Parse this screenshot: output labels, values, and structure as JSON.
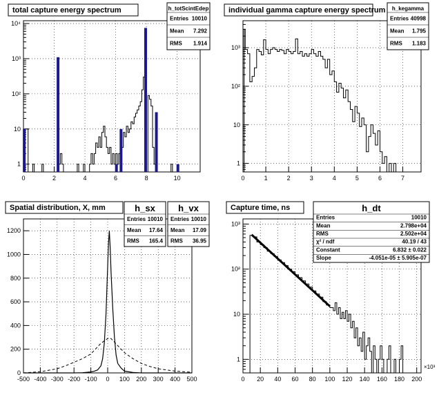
{
  "chart_data": [
    {
      "type": "bar",
      "title": "total capture energy spectrum",
      "stats": {
        "name": "h_totScintEdep",
        "rows": [
          [
            "Entries",
            "10010"
          ],
          [
            "Mean",
            "7.292"
          ],
          [
            "RMS",
            "1.914"
          ]
        ]
      },
      "xlim": [
        0,
        11.5
      ],
      "ylog": true,
      "ylim": [
        0.6,
        12000
      ],
      "x_ticks": [
        "0",
        "2",
        "4",
        "6",
        "8",
        "10"
      ],
      "y_ticks": [
        "1",
        "10",
        "10²",
        "10³",
        "10⁴"
      ],
      "outline": [
        [
          0,
          0.6
        ],
        [
          0.1,
          10
        ],
        [
          0.3,
          0.6
        ],
        [
          0.5,
          0.6
        ],
        [
          0.6,
          1
        ],
        [
          0.7,
          0.6
        ],
        [
          1.1,
          0.6
        ],
        [
          1.2,
          1
        ],
        [
          1.3,
          0.6
        ],
        [
          2.1,
          0.6
        ],
        [
          2.2,
          2
        ],
        [
          2.3,
          1
        ],
        [
          2.4,
          2
        ],
        [
          2.5,
          1
        ],
        [
          2.6,
          0.6
        ],
        [
          3.4,
          0.6
        ],
        [
          3.5,
          1
        ],
        [
          3.6,
          0.6
        ],
        [
          3.8,
          0.6
        ],
        [
          3.9,
          1
        ],
        [
          4.0,
          0.6
        ],
        [
          4.2,
          0.6
        ],
        [
          4.3,
          1
        ],
        [
          4.4,
          2
        ],
        [
          4.5,
          1
        ],
        [
          4.6,
          2
        ],
        [
          4.7,
          4
        ],
        [
          4.8,
          3
        ],
        [
          4.9,
          6
        ],
        [
          5.0,
          3
        ],
        [
          5.1,
          8
        ],
        [
          5.2,
          12
        ],
        [
          5.3,
          6
        ],
        [
          5.4,
          3
        ],
        [
          5.5,
          2
        ],
        [
          5.6,
          3
        ],
        [
          5.7,
          1
        ],
        [
          5.8,
          2
        ],
        [
          5.9,
          1
        ],
        [
          6.0,
          2
        ],
        [
          6.1,
          1
        ],
        [
          6.2,
          2
        ],
        [
          6.3,
          4
        ],
        [
          6.4,
          3
        ],
        [
          6.5,
          8
        ],
        [
          6.6,
          6
        ],
        [
          6.7,
          12
        ],
        [
          6.8,
          8
        ],
        [
          6.9,
          10
        ],
        [
          7.0,
          16
        ],
        [
          7.1,
          14
        ],
        [
          7.2,
          22
        ],
        [
          7.3,
          28
        ],
        [
          7.4,
          35
        ],
        [
          7.5,
          45
        ],
        [
          7.6,
          60
        ],
        [
          7.7,
          130
        ],
        [
          7.8,
          300
        ],
        [
          7.9,
          600
        ],
        [
          8.0,
          0.6
        ],
        [
          8.1,
          90
        ],
        [
          8.2,
          70
        ],
        [
          8.3,
          45
        ],
        [
          8.4,
          3
        ],
        [
          8.5,
          1
        ],
        [
          8.6,
          0.6
        ],
        [
          9.5,
          0.6
        ],
        [
          9.6,
          1
        ],
        [
          9.7,
          0.6
        ],
        [
          11.5,
          0.6
        ]
      ],
      "peaks": [
        {
          "x": 0.05,
          "y": 10
        },
        {
          "x": 2.25,
          "y": 1100
        },
        {
          "x": 6.05,
          "y": 1
        },
        {
          "x": 6.35,
          "y": 10
        },
        {
          "x": 7.95,
          "y": 7500
        },
        {
          "x": 8.65,
          "y": 30
        },
        {
          "x": 10.05,
          "y": 1
        }
      ]
    },
    {
      "type": "bar",
      "title": "individual gamma capture energy spectrum",
      "stats": {
        "name": "h_kegamma",
        "rows": [
          [
            "Entries",
            "40998"
          ],
          [
            "Mean",
            "1.795"
          ],
          [
            "RMS",
            "1.183"
          ]
        ]
      },
      "xlim": [
        0,
        7.8
      ],
      "ylog": true,
      "ylim": [
        0.6,
        5000
      ],
      "x_ticks": [
        "0",
        "1",
        "2",
        "3",
        "4",
        "5",
        "6",
        "7"
      ],
      "y_ticks": [
        "1",
        "10",
        "10²",
        "10³"
      ],
      "outline": [
        [
          0,
          0.6
        ],
        [
          0.05,
          3000
        ],
        [
          0.1,
          900
        ],
        [
          0.2,
          700
        ],
        [
          0.3,
          130
        ],
        [
          0.4,
          180
        ],
        [
          0.5,
          300
        ],
        [
          0.6,
          900
        ],
        [
          0.7,
          800
        ],
        [
          0.8,
          650
        ],
        [
          0.9,
          1600
        ],
        [
          1.0,
          900
        ],
        [
          1.1,
          700
        ],
        [
          1.2,
          900
        ],
        [
          1.3,
          1000
        ],
        [
          1.4,
          900
        ],
        [
          1.5,
          800
        ],
        [
          1.6,
          900
        ],
        [
          1.7,
          850
        ],
        [
          1.8,
          700
        ],
        [
          1.9,
          900
        ],
        [
          2.0,
          800
        ],
        [
          2.1,
          700
        ],
        [
          2.2,
          800
        ],
        [
          2.3,
          1700
        ],
        [
          2.4,
          700
        ],
        [
          2.5,
          800
        ],
        [
          2.6,
          600
        ],
        [
          2.7,
          700
        ],
        [
          2.8,
          600
        ],
        [
          2.9,
          700
        ],
        [
          3.0,
          900
        ],
        [
          3.1,
          700
        ],
        [
          3.2,
          600
        ],
        [
          3.3,
          800
        ],
        [
          3.4,
          600
        ],
        [
          3.5,
          500
        ],
        [
          3.6,
          300
        ],
        [
          3.7,
          500
        ],
        [
          3.8,
          200
        ],
        [
          3.9,
          250
        ],
        [
          4.0,
          130
        ],
        [
          4.1,
          70
        ],
        [
          4.2,
          120
        ],
        [
          4.3,
          90
        ],
        [
          4.4,
          50
        ],
        [
          4.5,
          80
        ],
        [
          4.6,
          40
        ],
        [
          4.7,
          25
        ],
        [
          4.8,
          12
        ],
        [
          4.9,
          30
        ],
        [
          5.0,
          20
        ],
        [
          5.1,
          9
        ],
        [
          5.2,
          15
        ],
        [
          5.3,
          10
        ],
        [
          5.4,
          2
        ],
        [
          5.5,
          5
        ],
        [
          5.6,
          10
        ],
        [
          5.7,
          6
        ],
        [
          5.8,
          3
        ],
        [
          5.9,
          7
        ],
        [
          6.0,
          2
        ],
        [
          6.1,
          1
        ],
        [
          6.2,
          1.5
        ],
        [
          6.3,
          0.6
        ],
        [
          6.4,
          1
        ],
        [
          6.5,
          0.6
        ],
        [
          6.6,
          1
        ],
        [
          6.7,
          0.6
        ],
        [
          7.8,
          0.6
        ]
      ]
    },
    {
      "type": "line",
      "title": "Spatial distribution, X, mm",
      "stats": [
        {
          "name": "h_sx",
          "rows": [
            [
              "Entries",
              "10010"
            ],
            [
              "Mean",
              "17.64"
            ],
            [
              "RMS",
              "165.4"
            ]
          ]
        },
        {
          "name": "h_vx",
          "rows": [
            [
              "Entries",
              "10010"
            ],
            [
              "Mean",
              "17.09"
            ],
            [
              "RMS",
              "36.95"
            ]
          ]
        }
      ],
      "xlim": [
        -500,
        500
      ],
      "ylim": [
        0,
        1300
      ],
      "x_ticks": [
        "-500",
        "-400",
        "-300",
        "-200",
        "-100",
        "0",
        "100",
        "200",
        "300",
        "400",
        "500"
      ],
      "y_ticks": [
        "0",
        "200",
        "400",
        "600",
        "800",
        "1000",
        "1200"
      ],
      "solid": [
        [
          -500,
          0
        ],
        [
          -200,
          0
        ],
        [
          -150,
          2
        ],
        [
          -100,
          8
        ],
        [
          -80,
          14
        ],
        [
          -60,
          25
        ],
        [
          -40,
          60
        ],
        [
          -30,
          120
        ],
        [
          -20,
          250
        ],
        [
          -10,
          500
        ],
        [
          0,
          900
        ],
        [
          5,
          1100
        ],
        [
          10,
          1200
        ],
        [
          15,
          1050
        ],
        [
          20,
          850
        ],
        [
          30,
          550
        ],
        [
          40,
          300
        ],
        [
          50,
          150
        ],
        [
          60,
          80
        ],
        [
          80,
          40
        ],
        [
          100,
          15
        ],
        [
          150,
          4
        ],
        [
          200,
          0
        ],
        [
          500,
          0
        ]
      ],
      "dashed": [
        [
          -500,
          0
        ],
        [
          -400,
          10
        ],
        [
          -300,
          35
        ],
        [
          -250,
          60
        ],
        [
          -200,
          90
        ],
        [
          -150,
          120
        ],
        [
          -100,
          160
        ],
        [
          -80,
          190
        ],
        [
          -60,
          220
        ],
        [
          -40,
          250
        ],
        [
          -20,
          270
        ],
        [
          0,
          290
        ],
        [
          10,
          295
        ],
        [
          20,
          290
        ],
        [
          40,
          260
        ],
        [
          60,
          230
        ],
        [
          80,
          200
        ],
        [
          100,
          170
        ],
        [
          150,
          120
        ],
        [
          200,
          80
        ],
        [
          250,
          55
        ],
        [
          300,
          35
        ],
        [
          400,
          15
        ],
        [
          500,
          5
        ]
      ]
    },
    {
      "type": "scatter",
      "title": "Capture time, ns",
      "stats": {
        "name": "h_dt",
        "rows": [
          [
            "Entries",
            "10010"
          ],
          [
            "Mean",
            "2.798e+04"
          ],
          [
            "RMS",
            "2.502e+04"
          ],
          [
            "χ² / ndf",
            "40.19 / 43"
          ],
          [
            "Constant",
            "6.832 ± 0.022"
          ],
          [
            "Slope",
            "-4.051e-05 ± 5.905e-07"
          ]
        ]
      },
      "xlim": [
        0,
        205
      ],
      "ylog": true,
      "ylim": [
        0.5,
        1300
      ],
      "x_multiplier": "×10³",
      "x_ticks": [
        "0",
        "20",
        "40",
        "60",
        "80",
        "100",
        "120",
        "140",
        "160",
        "180",
        "200"
      ],
      "y_ticks": [
        "1",
        "10",
        "10²",
        "10³"
      ],
      "fit": {
        "x0": 10,
        "x1": 100,
        "y0": 580,
        "y1": 15
      },
      "outline": [
        [
          0,
          0.5
        ],
        [
          8,
          560
        ],
        [
          12,
          520
        ],
        [
          16,
          400
        ],
        [
          20,
          350
        ],
        [
          24,
          300
        ],
        [
          28,
          250
        ],
        [
          32,
          220
        ],
        [
          36,
          190
        ],
        [
          40,
          160
        ],
        [
          44,
          140
        ],
        [
          48,
          120
        ],
        [
          52,
          100
        ],
        [
          56,
          88
        ],
        [
          60,
          75
        ],
        [
          64,
          65
        ],
        [
          68,
          55
        ],
        [
          72,
          47
        ],
        [
          76,
          40
        ],
        [
          80,
          33
        ],
        [
          84,
          28
        ],
        [
          88,
          24
        ],
        [
          92,
          19
        ],
        [
          96,
          16
        ],
        [
          100,
          14
        ],
        [
          104,
          12
        ],
        [
          106,
          18
        ],
        [
          108,
          10
        ],
        [
          110,
          14
        ],
        [
          112,
          8
        ],
        [
          114,
          11
        ],
        [
          116,
          8
        ],
        [
          118,
          12
        ],
        [
          120,
          7
        ],
        [
          122,
          10
        ],
        [
          124,
          5
        ],
        [
          126,
          7
        ],
        [
          128,
          3
        ],
        [
          130,
          5
        ],
        [
          132,
          2
        ],
        [
          134,
          3
        ],
        [
          136,
          1.5
        ],
        [
          138,
          4
        ],
        [
          140,
          1
        ],
        [
          142,
          2
        ],
        [
          144,
          3
        ],
        [
          146,
          1.5
        ],
        [
          148,
          0.5
        ],
        [
          150,
          2
        ],
        [
          152,
          1
        ],
        [
          154,
          0.5
        ],
        [
          156,
          1
        ],
        [
          158,
          2
        ],
        [
          160,
          1
        ],
        [
          162,
          0.5
        ],
        [
          166,
          1
        ],
        [
          168,
          2
        ],
        [
          170,
          0.5
        ],
        [
          174,
          1
        ],
        [
          176,
          0.5
        ],
        [
          180,
          1
        ],
        [
          182,
          2
        ],
        [
          184,
          0.5
        ],
        [
          205,
          0.5
        ]
      ]
    }
  ]
}
